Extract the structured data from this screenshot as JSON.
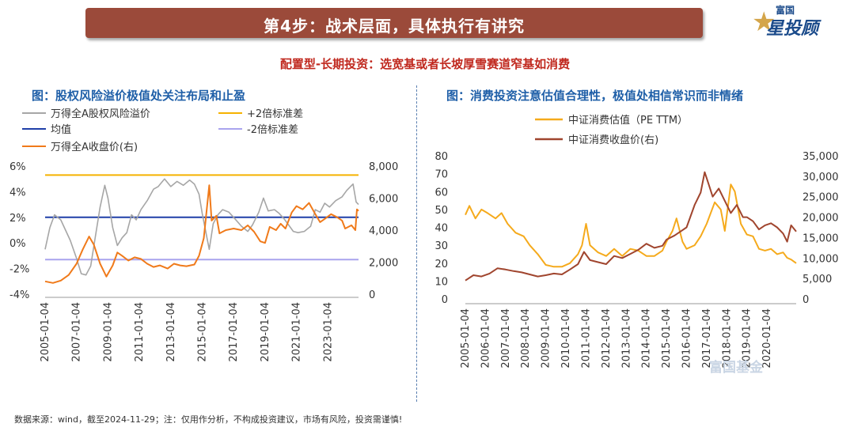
{
  "banner": {
    "title": "第4步：战术层面，具体执行有讲究"
  },
  "logo": {
    "top_text": "富国",
    "main_text": "星投顾"
  },
  "subtitle": "配置型-长期投资：选宽基或者长坡厚雪赛道窄基如消费",
  "footer": "数据来源：wind，截至2024-11-29；注：仅用作分析，不构成投资建议，市场有风险，投资需谨慎!",
  "watermark": "富国基金",
  "colors": {
    "gray": "#a6a6a6",
    "gold": "#f5b200",
    "navy": "#1f3fa8",
    "lavender": "#a9a4ee",
    "orange": "#f07a1a",
    "brown": "#a0452e",
    "pe": "#f5aa1c"
  },
  "chart_data": [
    {
      "type": "line",
      "title": "图：股权风险溢价极值处关注布局和止盈",
      "legend": [
        "万得全A股权风险溢价",
        "+2倍标准差",
        "均值",
        "-2倍标准差",
        "万得全A收盘价(右)"
      ],
      "x_ticks": [
        "2005-01-04",
        "2007-01-04",
        "2009-01-04",
        "2011-01-04",
        "2013-01-04",
        "2015-01-04",
        "2017-01-04",
        "2019-01-04",
        "2021-01-04",
        "2023-01-04"
      ],
      "y_left_ticks": [
        "6%",
        "4%",
        "2%",
        "0%",
        "-2%",
        "-4%"
      ],
      "y_left_range": [
        -4,
        6
      ],
      "y_right_ticks": [
        "8,000",
        "6,000",
        "4,000",
        "2,000",
        "0"
      ],
      "y_right_range": [
        0,
        8000
      ],
      "x_range": [
        2005.0,
        2024.95
      ],
      "series": [
        {
          "name": "万得全A股权风险溢价",
          "axis": "left",
          "color": "#a6a6a6",
          "points": [
            [
              2005.0,
              -0.5
            ],
            [
              2005.3,
              1.2
            ],
            [
              2005.6,
              2.2
            ],
            [
              2006.0,
              1.8
            ],
            [
              2006.3,
              1.0
            ],
            [
              2006.6,
              0.2
            ],
            [
              2007.0,
              -1.2
            ],
            [
              2007.3,
              -2.4
            ],
            [
              2007.6,
              -2.5
            ],
            [
              2007.9,
              -1.8
            ],
            [
              2008.2,
              0.5
            ],
            [
              2008.5,
              2.8
            ],
            [
              2008.8,
              4.5
            ],
            [
              2009.0,
              3.5
            ],
            [
              2009.3,
              1.2
            ],
            [
              2009.6,
              -0.2
            ],
            [
              2009.9,
              0.4
            ],
            [
              2010.2,
              0.8
            ],
            [
              2010.5,
              2.2
            ],
            [
              2010.8,
              1.8
            ],
            [
              2011.1,
              2.6
            ],
            [
              2011.5,
              3.3
            ],
            [
              2011.9,
              4.2
            ],
            [
              2012.2,
              4.4
            ],
            [
              2012.6,
              5.0
            ],
            [
              2013.0,
              4.4
            ],
            [
              2013.4,
              4.8
            ],
            [
              2013.8,
              4.5
            ],
            [
              2014.2,
              4.9
            ],
            [
              2014.5,
              4.6
            ],
            [
              2014.8,
              3.8
            ],
            [
              2015.0,
              2.3
            ],
            [
              2015.3,
              0.4
            ],
            [
              2015.45,
              -0.5
            ],
            [
              2015.7,
              1.5
            ],
            [
              2016.0,
              2.2
            ],
            [
              2016.3,
              2.6
            ],
            [
              2016.7,
              2.4
            ],
            [
              2017.0,
              2.0
            ],
            [
              2017.5,
              1.3
            ],
            [
              2017.9,
              0.9
            ],
            [
              2018.2,
              1.4
            ],
            [
              2018.6,
              2.4
            ],
            [
              2018.9,
              3.5
            ],
            [
              2019.2,
              2.5
            ],
            [
              2019.6,
              2.6
            ],
            [
              2019.9,
              2.3
            ],
            [
              2020.2,
              1.9
            ],
            [
              2020.5,
              1.4
            ],
            [
              2020.8,
              0.9
            ],
            [
              2021.1,
              0.8
            ],
            [
              2021.5,
              0.9
            ],
            [
              2021.9,
              1.3
            ],
            [
              2022.2,
              2.6
            ],
            [
              2022.5,
              2.4
            ],
            [
              2022.8,
              3.1
            ],
            [
              2023.1,
              2.8
            ],
            [
              2023.5,
              3.3
            ],
            [
              2023.9,
              3.6
            ],
            [
              2024.2,
              4.1
            ],
            [
              2024.6,
              4.6
            ],
            [
              2024.8,
              3.2
            ],
            [
              2024.95,
              3.0
            ]
          ]
        },
        {
          "name": "+2倍标准差",
          "axis": "left",
          "color": "#f5b200",
          "value": 5.3
        },
        {
          "name": "均值",
          "axis": "left",
          "color": "#1f3fa8",
          "value": 2.0
        },
        {
          "name": "-2倍标准差",
          "axis": "left",
          "color": "#a9a4ee",
          "value": -1.3
        },
        {
          "name": "万得全A收盘价(右)",
          "axis": "right",
          "color": "#f07a1a",
          "points": [
            [
              2005.0,
              800
            ],
            [
              2005.5,
              700
            ],
            [
              2006.0,
              850
            ],
            [
              2006.5,
              1200
            ],
            [
              2007.0,
              1900
            ],
            [
              2007.4,
              2800
            ],
            [
              2007.8,
              3600
            ],
            [
              2008.1,
              3100
            ],
            [
              2008.5,
              1900
            ],
            [
              2008.9,
              1100
            ],
            [
              2009.3,
              1800
            ],
            [
              2009.6,
              2600
            ],
            [
              2009.9,
              2400
            ],
            [
              2010.3,
              2100
            ],
            [
              2010.7,
              2300
            ],
            [
              2011.1,
              2200
            ],
            [
              2011.5,
              1900
            ],
            [
              2011.9,
              1700
            ],
            [
              2012.3,
              1800
            ],
            [
              2012.8,
              1600
            ],
            [
              2013.2,
              1900
            ],
            [
              2013.6,
              1800
            ],
            [
              2014.0,
              1750
            ],
            [
              2014.5,
              1850
            ],
            [
              2014.8,
              2400
            ],
            [
              2015.1,
              3500
            ],
            [
              2015.45,
              6800
            ],
            [
              2015.6,
              4600
            ],
            [
              2015.9,
              4900
            ],
            [
              2016.1,
              3800
            ],
            [
              2016.5,
              4000
            ],
            [
              2017.0,
              4100
            ],
            [
              2017.5,
              4000
            ],
            [
              2017.9,
              4300
            ],
            [
              2018.3,
              3900
            ],
            [
              2018.7,
              3300
            ],
            [
              2019.0,
              3200
            ],
            [
              2019.3,
              4200
            ],
            [
              2019.7,
              4000
            ],
            [
              2020.0,
              4400
            ],
            [
              2020.3,
              4100
            ],
            [
              2020.7,
              5100
            ],
            [
              2021.0,
              5500
            ],
            [
              2021.4,
              5300
            ],
            [
              2021.8,
              5700
            ],
            [
              2022.2,
              5000
            ],
            [
              2022.5,
              4500
            ],
            [
              2022.8,
              4700
            ],
            [
              2023.2,
              5000
            ],
            [
              2023.6,
              4800
            ],
            [
              2023.9,
              4600
            ],
            [
              2024.1,
              4100
            ],
            [
              2024.5,
              4300
            ],
            [
              2024.75,
              4000
            ],
            [
              2024.85,
              5300
            ],
            [
              2024.95,
              5200
            ]
          ]
        }
      ]
    },
    {
      "type": "line",
      "title": "图：消费投资注意估值合理性，极值处相信常识而非情绪",
      "legend": [
        "中证消费估值（PE TTM）",
        "中证消费收盘价(右)"
      ],
      "x_ticks": [
        "2005-01-04",
        "2006-01-04",
        "2007-01-04",
        "2008-01-04",
        "2009-01-04",
        "2010-01-04",
        "2011-01-04",
        "2012-01-04",
        "2013-01-04",
        "2014-01-04",
        "2015-01-04",
        "2016-01-04",
        "2017-01-04",
        "2018-01-04",
        "2019-01-04",
        "2020-01-04"
      ],
      "y_left_ticks": [
        "80",
        "70",
        "60",
        "50",
        "40",
        "30",
        "20",
        "10",
        "0"
      ],
      "y_left_range": [
        0,
        80
      ],
      "y_right_ticks": [
        "35,000",
        "30,000",
        "25,000",
        "20,000",
        "15,000",
        "10,000",
        "5,000",
        "0"
      ],
      "y_right_range": [
        0,
        35000
      ],
      "x_range": [
        2005.0,
        2021.45
      ],
      "series": [
        {
          "name": "中证消费估值（PE TTM）",
          "axis": "left",
          "color": "#f5aa1c",
          "points": [
            [
              2005.0,
              47
            ],
            [
              2005.2,
              52
            ],
            [
              2005.5,
              45
            ],
            [
              2005.8,
              50
            ],
            [
              2006.1,
              48
            ],
            [
              2006.5,
              45
            ],
            [
              2006.8,
              48
            ],
            [
              2007.1,
              42
            ],
            [
              2007.5,
              37
            ],
            [
              2007.9,
              35
            ],
            [
              2008.2,
              30
            ],
            [
              2008.6,
              25
            ],
            [
              2009.0,
              19
            ],
            [
              2009.4,
              18
            ],
            [
              2009.8,
              18
            ],
            [
              2010.2,
              20
            ],
            [
              2010.6,
              25
            ],
            [
              2010.8,
              30
            ],
            [
              2011.0,
              42
            ],
            [
              2011.2,
              30
            ],
            [
              2011.6,
              26
            ],
            [
              2012.0,
              24
            ],
            [
              2012.4,
              28
            ],
            [
              2012.8,
              24
            ],
            [
              2013.2,
              28
            ],
            [
              2013.6,
              27
            ],
            [
              2014.0,
              24
            ],
            [
              2014.4,
              24
            ],
            [
              2014.8,
              27
            ],
            [
              2015.0,
              32
            ],
            [
              2015.3,
              38
            ],
            [
              2015.5,
              45
            ],
            [
              2015.8,
              32
            ],
            [
              2016.0,
              28
            ],
            [
              2016.4,
              30
            ],
            [
              2016.7,
              35
            ],
            [
              2017.0,
              42
            ],
            [
              2017.4,
              54
            ],
            [
              2017.7,
              50
            ],
            [
              2017.9,
              38
            ],
            [
              2018.2,
              64
            ],
            [
              2018.4,
              60
            ],
            [
              2018.7,
              42
            ],
            [
              2019.0,
              36
            ],
            [
              2019.3,
              35
            ],
            [
              2019.6,
              28
            ],
            [
              2019.9,
              27
            ],
            [
              2020.2,
              28
            ],
            [
              2020.5,
              25
            ],
            [
              2020.8,
              26
            ],
            [
              2021.0,
              23
            ],
            [
              2021.2,
              22
            ],
            [
              2021.45,
              20
            ]
          ]
        },
        {
          "name": "中证消费收盘价(右)",
          "axis": "right",
          "color": "#a0452e",
          "points": [
            [
              2005.0,
              4500
            ],
            [
              2005.4,
              5800
            ],
            [
              2005.8,
              5500
            ],
            [
              2006.2,
              6200
            ],
            [
              2006.6,
              7500
            ],
            [
              2007.0,
              7200
            ],
            [
              2007.4,
              6800
            ],
            [
              2007.8,
              6500
            ],
            [
              2008.2,
              6000
            ],
            [
              2008.6,
              5500
            ],
            [
              2009.0,
              5800
            ],
            [
              2009.4,
              6200
            ],
            [
              2009.8,
              6000
            ],
            [
              2010.2,
              7200
            ],
            [
              2010.6,
              8500
            ],
            [
              2010.9,
              11500
            ],
            [
              2011.2,
              9500
            ],
            [
              2011.6,
              9000
            ],
            [
              2012.0,
              8500
            ],
            [
              2012.4,
              10500
            ],
            [
              2012.8,
              10000
            ],
            [
              2013.2,
              11000
            ],
            [
              2013.6,
              12000
            ],
            [
              2014.0,
              13500
            ],
            [
              2014.4,
              12500
            ],
            [
              2014.8,
              13000
            ],
            [
              2015.0,
              14500
            ],
            [
              2015.4,
              15500
            ],
            [
              2015.7,
              16500
            ],
            [
              2016.0,
              17500
            ],
            [
              2016.4,
              23000
            ],
            [
              2016.7,
              26000
            ],
            [
              2016.9,
              31000
            ],
            [
              2017.1,
              28000
            ],
            [
              2017.3,
              25000
            ],
            [
              2017.6,
              27000
            ],
            [
              2017.9,
              24000
            ],
            [
              2018.2,
              21000
            ],
            [
              2018.5,
              23000
            ],
            [
              2018.8,
              20000
            ],
            [
              2019.0,
              20000
            ],
            [
              2019.3,
              19000
            ],
            [
              2019.6,
              17000
            ],
            [
              2019.9,
              18000
            ],
            [
              2020.2,
              18500
            ],
            [
              2020.5,
              17500
            ],
            [
              2020.8,
              16000
            ],
            [
              2021.0,
              14000
            ],
            [
              2021.2,
              18000
            ],
            [
              2021.45,
              16500
            ]
          ]
        }
      ]
    }
  ]
}
